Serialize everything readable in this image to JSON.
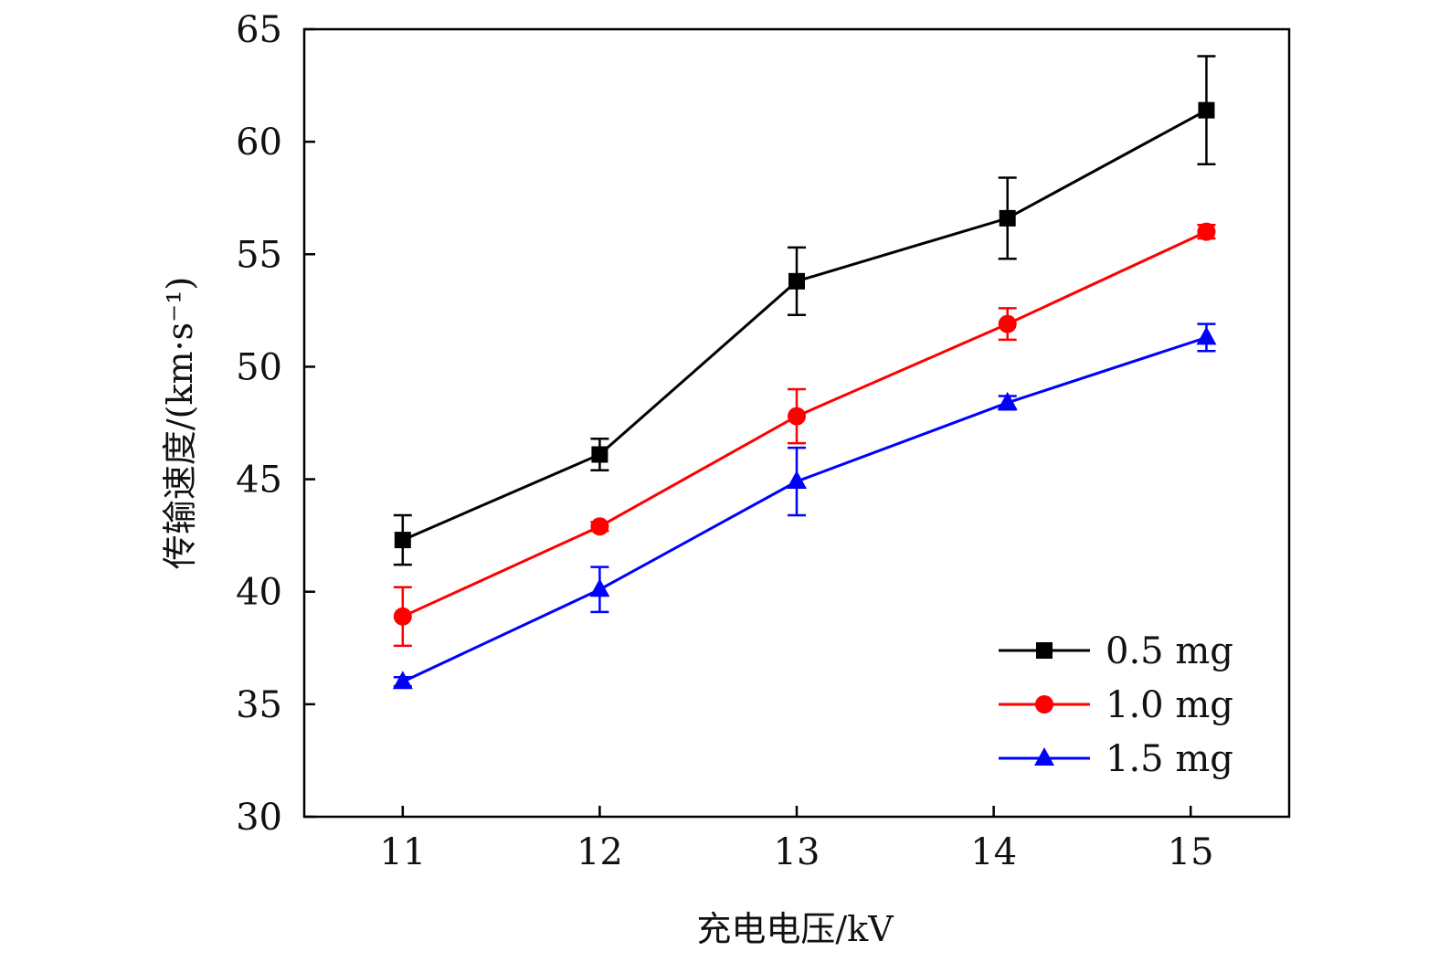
{
  "chart_data": {
    "type": "line",
    "title": "",
    "xlabel": "充电电压/kV",
    "ylabel": "传输速度/(km·s⁻¹)",
    "x": [
      11,
      12,
      13,
      14.07,
      15.08
    ],
    "x_ticks": [
      11,
      12,
      13,
      14,
      15
    ],
    "xlim": [
      10.5,
      15.5
    ],
    "ylim": [
      30,
      65
    ],
    "y_ticks": [
      30,
      35,
      40,
      45,
      50,
      55,
      60,
      65
    ],
    "grid": false,
    "legend_position": "bottom-right",
    "series": [
      {
        "name": "0.5 mg",
        "color": "#000000",
        "marker": "square",
        "values": [
          42.3,
          46.1,
          53.8,
          56.6,
          61.4
        ],
        "errors": [
          1.1,
          0.7,
          1.5,
          1.8,
          2.4
        ]
      },
      {
        "name": "1.0 mg",
        "color": "#ff0000",
        "marker": "circle",
        "values": [
          38.9,
          42.9,
          47.8,
          51.9,
          56.0
        ],
        "errors": [
          1.3,
          0.2,
          1.2,
          0.7,
          0.3
        ]
      },
      {
        "name": "1.5 mg",
        "color": "#0000ff",
        "marker": "triangle",
        "values": [
          36.0,
          40.1,
          44.9,
          48.4,
          51.3
        ],
        "errors": [
          0.2,
          1.0,
          1.5,
          0.3,
          0.6
        ]
      }
    ]
  }
}
